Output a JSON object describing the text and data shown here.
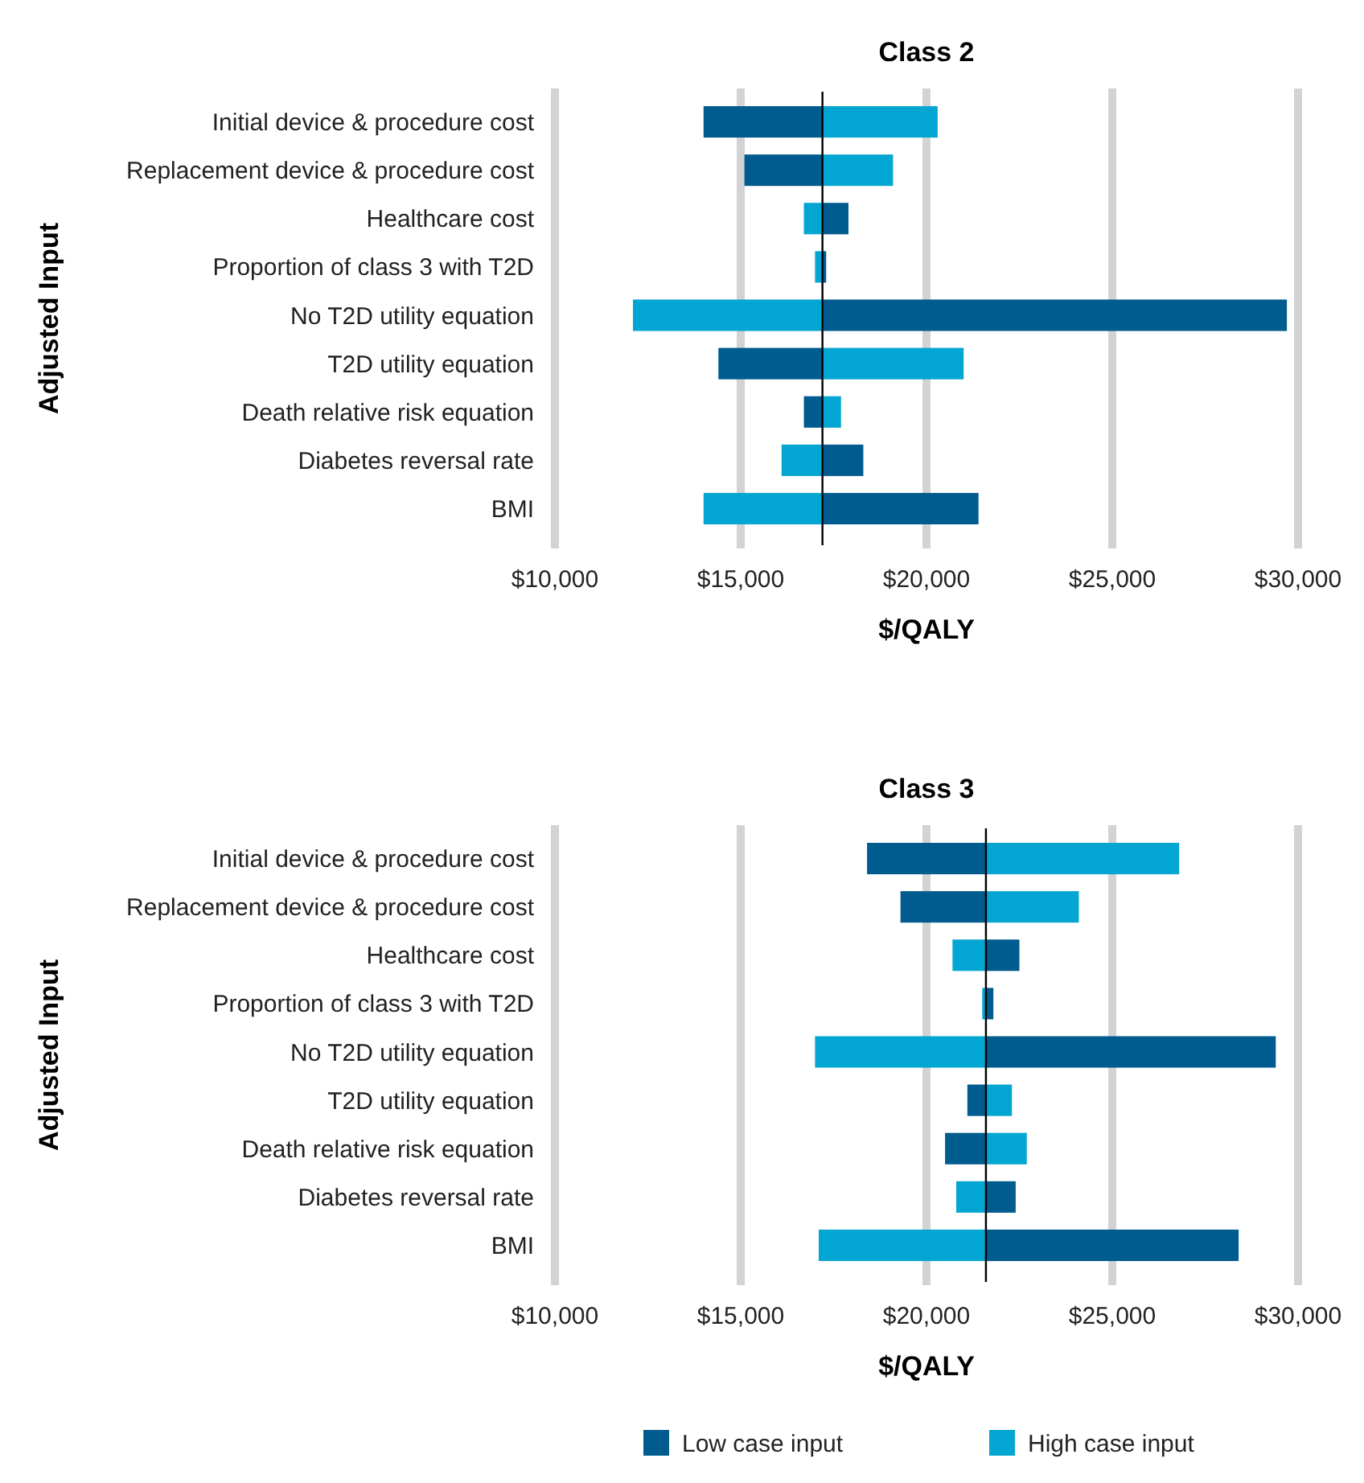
{
  "chart_data": [
    {
      "type": "bar",
      "orientation": "horizontal",
      "title": "Class 2",
      "xlabel": "$/QALY",
      "ylabel": "Adjusted Input",
      "categories": [
        "Initial device & procedure cost",
        "Replacement device & procedure cost",
        "Healthcare cost",
        "Proportion of class 3 with T2D",
        "No T2D utility equation",
        "T2D utility equation",
        "Death relative risk equation",
        "Diabetes reversal rate",
        "BMI"
      ],
      "series": [
        {
          "color": "#005b8e",
          "base": [
            17200,
            17200,
            17200,
            17200,
            17200,
            17200,
            17200,
            17200,
            17200
          ],
          "values": [
            -3200,
            -2100,
            700,
            100,
            12500,
            -2800,
            -500,
            1100,
            4200
          ]
        },
        {
          "color": "#03a6d2",
          "base": [
            17200,
            17200,
            17200,
            17200,
            17200,
            17200,
            17200,
            17200,
            17200
          ],
          "values": [
            3100,
            1900,
            -500,
            -200,
            -5100,
            3800,
            500,
            -1100,
            -3200
          ]
        }
      ],
      "xlim": [
        10000,
        30000
      ],
      "xticks": [
        {
          "value": 10000,
          "label": "$10,000"
        },
        {
          "value": 15000,
          "label": "$15,000"
        },
        {
          "value": 20000,
          "label": "$20,000"
        },
        {
          "value": 25000,
          "label": "$25,000"
        },
        {
          "value": 30000,
          "label": "$30,000"
        }
      ],
      "grid": "x",
      "legend": false,
      "ref_lines": [
        {
          "axis": "x",
          "value": 17200,
          "color": "#000000"
        }
      ]
    },
    {
      "type": "bar",
      "orientation": "horizontal",
      "title": "Class 3",
      "xlabel": "$/QALY",
      "ylabel": "Adjusted Input",
      "categories": [
        "Initial device & procedure cost",
        "Replacement device & procedure cost",
        "Healthcare cost",
        "Proportion of class 3 with T2D",
        "No T2D utility equation",
        "T2D utility equation",
        "Death relative risk equation",
        "Diabetes reversal rate",
        "BMI"
      ],
      "series": [
        {
          "name": "Low case  input",
          "color": "#005b8e",
          "base": [
            21600,
            21600,
            21600,
            21600,
            21600,
            21600,
            21600,
            21600,
            21600
          ],
          "values": [
            -3200,
            -2300,
            900,
            200,
            7800,
            -500,
            -1100,
            800,
            6800
          ]
        },
        {
          "name": "High case input",
          "color": "#03a6d2",
          "base": [
            21600,
            21600,
            21600,
            21600,
            21600,
            21600,
            21600,
            21600,
            21600
          ],
          "values": [
            5200,
            2500,
            -900,
            -100,
            -4600,
            700,
            1100,
            -800,
            -4500
          ]
        }
      ],
      "xlim": [
        10000,
        30000
      ],
      "xticks": [
        {
          "value": 10000,
          "label": "$10,000"
        },
        {
          "value": 15000,
          "label": "$15,000"
        },
        {
          "value": 20000,
          "label": "$20,000"
        },
        {
          "value": 25000,
          "label": "$25,000"
        },
        {
          "value": 30000,
          "label": "$30,000"
        }
      ],
      "grid": "x",
      "legend": "bottom",
      "ref_lines": [
        {
          "axis": "x",
          "value": 21600,
          "color": "#000000"
        }
      ]
    }
  ]
}
